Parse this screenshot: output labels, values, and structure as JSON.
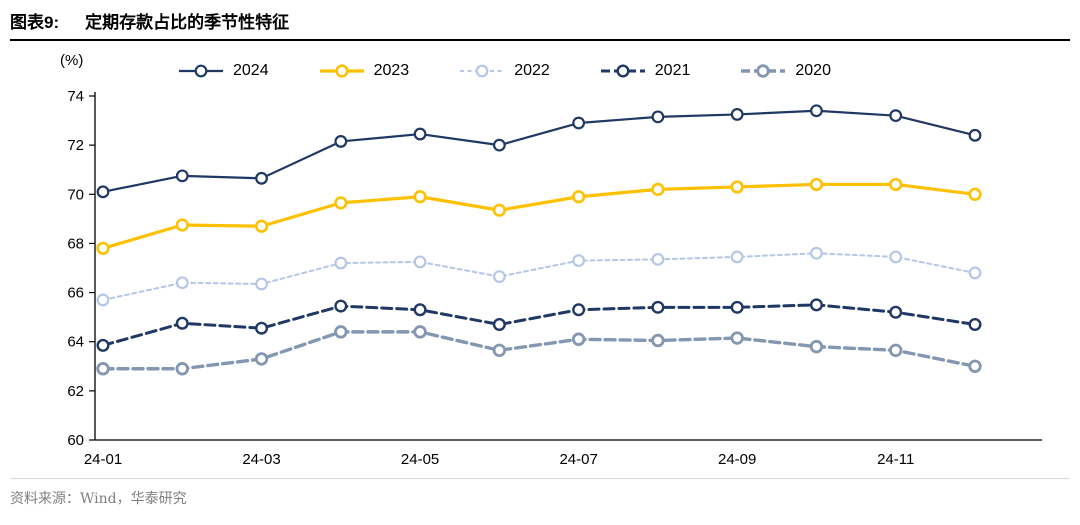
{
  "header": {
    "tag": "图表9:",
    "title": "定期存款占比的季节性特征"
  },
  "source": "资料来源：Wind，华泰研究",
  "chart_data": {
    "type": "line",
    "title": "定期存款占比的季节性特征",
    "ylabel": "(%)",
    "xlabel": "",
    "grid": false,
    "legend_position": "top",
    "ylim": [
      60,
      74
    ],
    "yticks": [
      60,
      62,
      64,
      66,
      68,
      70,
      72,
      74
    ],
    "x": [
      "24-01",
      "24-02",
      "24-03",
      "24-04",
      "24-05",
      "24-06",
      "24-07",
      "24-08",
      "24-09",
      "24-10",
      "24-11",
      "24-12"
    ],
    "x_tick_labels": [
      "24-01",
      "24-03",
      "24-05",
      "24-07",
      "24-09",
      "24-11"
    ],
    "x_tick_indices": [
      0,
      2,
      4,
      6,
      8,
      10
    ],
    "series": [
      {
        "name": "2024",
        "color": "#1F3864",
        "dash": "solid",
        "width": 2.2,
        "values": [
          70.1,
          70.75,
          70.65,
          72.15,
          72.45,
          72.0,
          72.9,
          73.15,
          73.25,
          73.4,
          73.2,
          72.4
        ]
      },
      {
        "name": "2023",
        "color": "#FFC000",
        "dash": "solid",
        "width": 3.2,
        "values": [
          67.8,
          68.75,
          68.7,
          69.65,
          69.9,
          69.35,
          69.9,
          70.2,
          70.3,
          70.4,
          70.4,
          70.0
        ]
      },
      {
        "name": "2022",
        "color": "#B4C7E7",
        "dash": "dot",
        "width": 2.0,
        "values": [
          65.7,
          66.4,
          66.35,
          67.2,
          67.25,
          66.65,
          67.3,
          67.35,
          67.45,
          67.6,
          67.45,
          66.8
        ]
      },
      {
        "name": "2021",
        "color": "#1F3864",
        "dash": "dash",
        "width": 3.0,
        "values": [
          63.85,
          64.75,
          64.55,
          65.45,
          65.3,
          64.7,
          65.3,
          65.4,
          65.4,
          65.5,
          65.2,
          64.7
        ]
      },
      {
        "name": "2020",
        "color": "#8497B0",
        "dash": "dash",
        "width": 3.4,
        "values": [
          62.9,
          62.9,
          63.3,
          64.4,
          64.4,
          63.65,
          64.1,
          64.05,
          64.15,
          63.8,
          63.65,
          63.0
        ]
      }
    ]
  }
}
